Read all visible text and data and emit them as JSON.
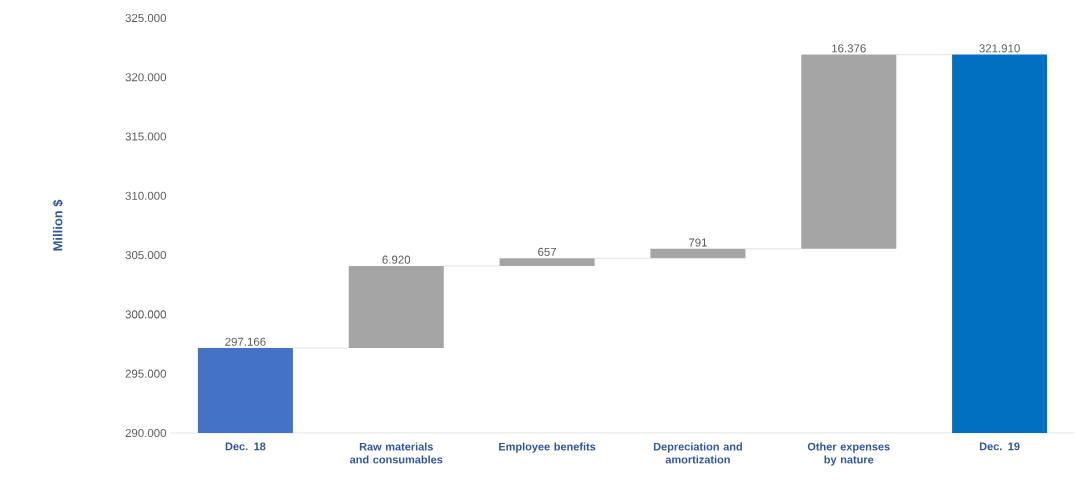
{
  "chart_data": {
    "type": "bar",
    "ylabel": "Million $",
    "categories": [
      "Dec. 18",
      "Raw materials and consumables",
      "Employee benefits",
      "Depreciation and amortization",
      "Other expenses by nature",
      "Dec. 19"
    ],
    "values": [
      297166,
      6920,
      657,
      791,
      16376,
      321910
    ],
    "base": [
      null,
      297166,
      304086,
      304743,
      305534,
      null
    ],
    "colors": [
      "#4472c4",
      "#a5a5a5",
      "#a5a5a5",
      "#a5a5a5",
      "#a5a5a5",
      "#0070c0"
    ],
    "value_labels": [
      "297.166",
      "6.920",
      "657",
      "791",
      "16.376",
      "321.910"
    ],
    "ylim": [
      290000,
      325000
    ],
    "yticks": [
      {
        "value": 290000,
        "label": "290.000"
      },
      {
        "value": 295000,
        "label": "295.000"
      },
      {
        "value": 300000,
        "label": "300.000"
      },
      {
        "value": 305000,
        "label": "305.000"
      },
      {
        "value": 310000,
        "label": "310.000"
      },
      {
        "value": 315000,
        "label": "315.000"
      },
      {
        "value": 320000,
        "label": "320.000"
      },
      {
        "value": 325000,
        "label": "325.000"
      }
    ],
    "grid": false
  }
}
